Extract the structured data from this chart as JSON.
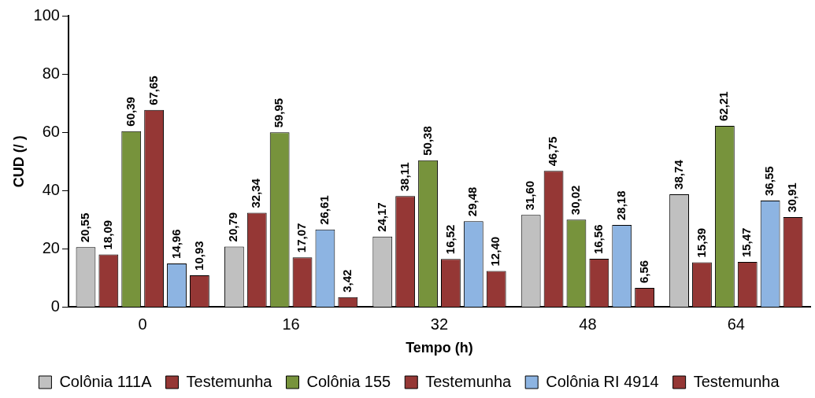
{
  "chart_data": {
    "type": "bar",
    "xlabel": "Tempo (h)",
    "ylabel": "CUD (/ )",
    "categories": [
      "0",
      "16",
      "32",
      "48",
      "64"
    ],
    "ylim": [
      0,
      100
    ],
    "yticks": [
      0,
      20,
      40,
      60,
      80,
      100
    ],
    "grid": false,
    "legend": "bottom",
    "series": [
      {
        "name": "Colônia 111A",
        "color": "#c0c0c0",
        "values": [
          20.55,
          20.79,
          24.17,
          31.6,
          38.74
        ],
        "value_labels": [
          "20,55",
          "20,79",
          "24,17",
          "31,60",
          "38,74"
        ]
      },
      {
        "name": "Testemunha",
        "color": "#953735",
        "values": [
          18.09,
          32.34,
          38.11,
          46.75,
          15.39
        ],
        "value_labels": [
          "18,09",
          "32,34",
          "38,11",
          "46,75",
          "15,39"
        ]
      },
      {
        "name": "Colônia 155",
        "color": "#77933c",
        "values": [
          60.39,
          59.95,
          50.38,
          30.02,
          62.21
        ],
        "value_labels": [
          "60,39",
          "59,95",
          "50,38",
          "30,02",
          "62,21"
        ]
      },
      {
        "name": "Testemunha",
        "color": "#953735",
        "values": [
          67.65,
          17.07,
          16.52,
          16.56,
          15.47
        ],
        "value_labels": [
          "67,65",
          "17,07",
          "16,52",
          "16,56",
          "15,47"
        ]
      },
      {
        "name": "Colônia RI 4914",
        "color": "#8db4e2",
        "values": [
          14.96,
          26.61,
          29.48,
          28.18,
          36.55
        ],
        "value_labels": [
          "14,96",
          "26,61",
          "29,48",
          "28,18",
          "36,55"
        ]
      },
      {
        "name": "Testemunha",
        "color": "#953735",
        "values": [
          10.93,
          3.42,
          12.4,
          6.56,
          30.91
        ],
        "value_labels": [
          "10,93",
          "3,42",
          "12,40",
          "6,56",
          "30,91"
        ]
      }
    ]
  }
}
